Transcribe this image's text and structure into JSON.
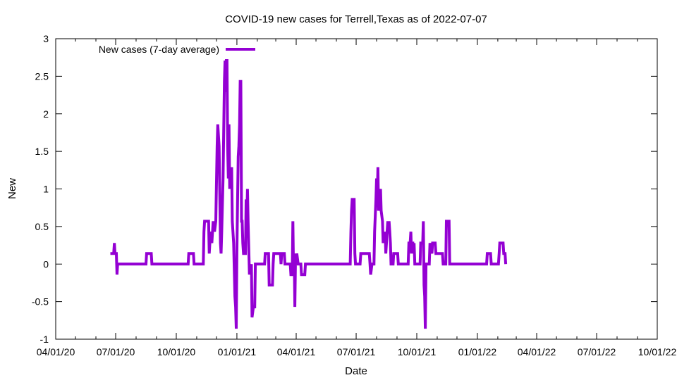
{
  "chart_data": {
    "type": "line",
    "title": "COVID-19 new cases for Terrell,Texas as of 2022-07-07",
    "xlabel": "Date",
    "ylabel": "New",
    "x_axis": {
      "type": "date",
      "range": [
        "2020-04-01",
        "2022-10-01"
      ],
      "ticks": [
        {
          "date": "2020-04-01",
          "label": "04/01/20"
        },
        {
          "date": "2020-07-01",
          "label": "07/01/20"
        },
        {
          "date": "2020-10-01",
          "label": "10/01/20"
        },
        {
          "date": "2021-01-01",
          "label": "01/01/21"
        },
        {
          "date": "2021-04-01",
          "label": "04/01/21"
        },
        {
          "date": "2021-07-01",
          "label": "07/01/21"
        },
        {
          "date": "2021-10-01",
          "label": "10/01/21"
        },
        {
          "date": "2022-01-01",
          "label": "01/01/22"
        },
        {
          "date": "2022-04-01",
          "label": "04/01/22"
        },
        {
          "date": "2022-07-01",
          "label": "07/01/22"
        },
        {
          "date": "2022-10-01",
          "label": "10/01/22"
        }
      ]
    },
    "y_axis": {
      "range": [
        -1,
        3
      ],
      "ticks": [
        {
          "value": 3,
          "label": "3"
        },
        {
          "value": 2.5,
          "label": "2.5"
        },
        {
          "value": 2,
          "label": "2"
        },
        {
          "value": 1.5,
          "label": "1.5"
        },
        {
          "value": 1,
          "label": "1"
        },
        {
          "value": 0.5,
          "label": "0.5"
        },
        {
          "value": 0,
          "label": "0"
        },
        {
          "value": -0.5,
          "label": "-0.5"
        },
        {
          "value": -1,
          "label": "-1"
        }
      ]
    },
    "grid": false,
    "legend": {
      "position": "top-left"
    },
    "series": [
      {
        "name": "New cases (7-day average)",
        "color": "#9400d3",
        "points": [
          [
            "2020-06-23",
            0.14
          ],
          [
            "2020-06-28",
            0.14
          ],
          [
            "2020-06-29",
            0.28
          ],
          [
            "2020-06-30",
            0.14
          ],
          [
            "2020-07-02",
            0.14
          ],
          [
            "2020-07-03",
            -0.14
          ],
          [
            "2020-07-04",
            0.0
          ],
          [
            "2020-08-16",
            0.0
          ],
          [
            "2020-08-17",
            0.14
          ],
          [
            "2020-08-24",
            0.14
          ],
          [
            "2020-08-25",
            0.0
          ],
          [
            "2020-10-19",
            0.0
          ],
          [
            "2020-10-20",
            0.14
          ],
          [
            "2020-10-27",
            0.14
          ],
          [
            "2020-10-28",
            0.0
          ],
          [
            "2020-11-11",
            0.0
          ],
          [
            "2020-11-12",
            0.43
          ],
          [
            "2020-11-13",
            0.57
          ],
          [
            "2020-11-19",
            0.57
          ],
          [
            "2020-11-20",
            0.14
          ],
          [
            "2020-11-22",
            0.43
          ],
          [
            "2020-11-24",
            0.28
          ],
          [
            "2020-11-26",
            0.57
          ],
          [
            "2020-11-28",
            0.43
          ],
          [
            "2020-11-30",
            0.57
          ],
          [
            "2020-12-02",
            1.57
          ],
          [
            "2020-12-03",
            1.86
          ],
          [
            "2020-12-05",
            1.57
          ],
          [
            "2020-12-07",
            0.28
          ],
          [
            "2020-12-08",
            0.14
          ],
          [
            "2020-12-09",
            0.43
          ],
          [
            "2020-12-11",
            1.14
          ],
          [
            "2020-12-13",
            2.43
          ],
          [
            "2020-12-14",
            2.71
          ],
          [
            "2020-12-15",
            2.29
          ],
          [
            "2020-12-16",
            2.71
          ],
          [
            "2020-12-17",
            2.71
          ],
          [
            "2020-12-18",
            1.57
          ],
          [
            "2020-12-19",
            1.14
          ],
          [
            "2020-12-20",
            1.86
          ],
          [
            "2020-12-21",
            1.0
          ],
          [
            "2020-12-22",
            1.29
          ],
          [
            "2020-12-23",
            1.0
          ],
          [
            "2020-12-24",
            1.29
          ],
          [
            "2020-12-25",
            0.57
          ],
          [
            "2020-12-27",
            0.28
          ],
          [
            "2020-12-29",
            -0.43
          ],
          [
            "2020-12-30",
            -0.57
          ],
          [
            "2020-12-31",
            -0.86
          ],
          [
            "2021-01-01",
            0.14
          ],
          [
            "2021-01-02",
            0.86
          ],
          [
            "2021-01-03",
            1.43
          ],
          [
            "2021-01-04",
            1.57
          ],
          [
            "2021-01-05",
            1.86
          ],
          [
            "2021-01-06",
            2.43
          ],
          [
            "2021-01-07",
            2.43
          ],
          [
            "2021-01-08",
            0.57
          ],
          [
            "2021-01-09",
            0.57
          ],
          [
            "2021-01-10",
            0.28
          ],
          [
            "2021-01-11",
            0.14
          ],
          [
            "2021-01-14",
            0.14
          ],
          [
            "2021-01-15",
            0.86
          ],
          [
            "2021-01-16",
            0.57
          ],
          [
            "2021-01-17",
            1.0
          ],
          [
            "2021-01-18",
            0.57
          ],
          [
            "2021-01-20",
            -0.14
          ],
          [
            "2021-01-21",
            0.0
          ],
          [
            "2021-01-22",
            -0.14
          ],
          [
            "2021-01-23",
            0.0
          ],
          [
            "2021-01-24",
            -0.71
          ],
          [
            "2021-01-26",
            -0.57
          ],
          [
            "2021-01-28",
            -0.57
          ],
          [
            "2021-01-29",
            0.0
          ],
          [
            "2021-02-12",
            0.0
          ],
          [
            "2021-02-13",
            0.14
          ],
          [
            "2021-02-18",
            0.14
          ],
          [
            "2021-02-19",
            -0.28
          ],
          [
            "2021-02-24",
            -0.28
          ],
          [
            "2021-02-25",
            0.0
          ],
          [
            "2021-02-26",
            0.14
          ],
          [
            "2021-03-08",
            0.14
          ],
          [
            "2021-03-09",
            0.0
          ],
          [
            "2021-03-10",
            0.14
          ],
          [
            "2021-03-14",
            0.14
          ],
          [
            "2021-03-15",
            0.0
          ],
          [
            "2021-03-23",
            0.0
          ],
          [
            "2021-03-24",
            -0.14
          ],
          [
            "2021-03-26",
            -0.14
          ],
          [
            "2021-03-27",
            0.57
          ],
          [
            "2021-03-28",
            -0.14
          ],
          [
            "2021-03-29",
            0.14
          ],
          [
            "2021-03-30",
            -0.57
          ],
          [
            "2021-03-31",
            0.14
          ],
          [
            "2021-04-01",
            0.0
          ],
          [
            "2021-04-02",
            0.14
          ],
          [
            "2021-04-04",
            0.0
          ],
          [
            "2021-04-08",
            0.0
          ],
          [
            "2021-04-09",
            -0.14
          ],
          [
            "2021-04-14",
            -0.14
          ],
          [
            "2021-04-15",
            0.0
          ],
          [
            "2021-06-22",
            0.0
          ],
          [
            "2021-06-23",
            0.43
          ],
          [
            "2021-06-24",
            0.71
          ],
          [
            "2021-06-25",
            0.86
          ],
          [
            "2021-06-28",
            0.86
          ],
          [
            "2021-06-29",
            0.14
          ],
          [
            "2021-06-30",
            0.0
          ],
          [
            "2021-07-07",
            0.0
          ],
          [
            "2021-07-08",
            0.14
          ],
          [
            "2021-07-21",
            0.14
          ],
          [
            "2021-07-22",
            0.0
          ],
          [
            "2021-07-23",
            -0.14
          ],
          [
            "2021-07-25",
            0.0
          ],
          [
            "2021-07-28",
            0.0
          ],
          [
            "2021-07-29",
            0.43
          ],
          [
            "2021-07-31",
            0.86
          ],
          [
            "2021-08-01",
            1.14
          ],
          [
            "2021-08-02",
            0.86
          ],
          [
            "2021-08-03",
            1.29
          ],
          [
            "2021-08-04",
            0.71
          ],
          [
            "2021-08-05",
            1.0
          ],
          [
            "2021-08-06",
            0.71
          ],
          [
            "2021-08-07",
            1.0
          ],
          [
            "2021-08-08",
            0.71
          ],
          [
            "2021-08-10",
            0.57
          ],
          [
            "2021-08-11",
            0.28
          ],
          [
            "2021-08-12",
            0.43
          ],
          [
            "2021-08-13",
            0.28
          ],
          [
            "2021-08-14",
            0.43
          ],
          [
            "2021-08-15",
            0.14
          ],
          [
            "2021-08-16",
            0.28
          ],
          [
            "2021-08-17",
            0.43
          ],
          [
            "2021-08-18",
            0.57
          ],
          [
            "2021-08-19",
            0.43
          ],
          [
            "2021-08-20",
            0.57
          ],
          [
            "2021-08-21",
            0.43
          ],
          [
            "2021-08-22",
            0.28
          ],
          [
            "2021-08-23",
            0.0
          ],
          [
            "2021-08-26",
            0.0
          ],
          [
            "2021-08-27",
            0.14
          ],
          [
            "2021-09-02",
            0.14
          ],
          [
            "2021-09-03",
            0.0
          ],
          [
            "2021-09-18",
            0.0
          ],
          [
            "2021-09-19",
            0.28
          ],
          [
            "2021-09-21",
            0.28
          ],
          [
            "2021-09-22",
            0.43
          ],
          [
            "2021-09-23",
            0.14
          ],
          [
            "2021-09-24",
            0.28
          ],
          [
            "2021-09-25",
            0.28
          ],
          [
            "2021-09-26",
            0.14
          ],
          [
            "2021-09-27",
            0.28
          ],
          [
            "2021-09-28",
            0.0
          ],
          [
            "2021-10-06",
            0.0
          ],
          [
            "2021-10-07",
            0.28
          ],
          [
            "2021-10-10",
            0.28
          ],
          [
            "2021-10-11",
            0.57
          ],
          [
            "2021-10-12",
            -0.28
          ],
          [
            "2021-10-13",
            -0.43
          ],
          [
            "2021-10-14",
            -0.86
          ],
          [
            "2021-10-15",
            0.0
          ],
          [
            "2021-10-20",
            0.0
          ],
          [
            "2021-10-21",
            0.28
          ],
          [
            "2021-10-24",
            0.14
          ],
          [
            "2021-10-25",
            0.28
          ],
          [
            "2021-10-29",
            0.28
          ],
          [
            "2021-10-30",
            0.14
          ],
          [
            "2021-11-09",
            0.14
          ],
          [
            "2021-11-10",
            0.0
          ],
          [
            "2021-11-14",
            0.0
          ],
          [
            "2021-11-15",
            0.57
          ],
          [
            "2021-11-19",
            0.57
          ],
          [
            "2021-11-20",
            0.0
          ],
          [
            "2022-01-15",
            0.0
          ],
          [
            "2022-01-16",
            0.14
          ],
          [
            "2022-01-21",
            0.14
          ],
          [
            "2022-01-22",
            0.0
          ],
          [
            "2022-02-02",
            0.0
          ],
          [
            "2022-02-03",
            0.14
          ],
          [
            "2022-02-04",
            0.28
          ],
          [
            "2022-02-09",
            0.28
          ],
          [
            "2022-02-10",
            0.14
          ],
          [
            "2022-02-12",
            0.14
          ],
          [
            "2022-02-13",
            0.0
          ]
        ]
      }
    ]
  }
}
